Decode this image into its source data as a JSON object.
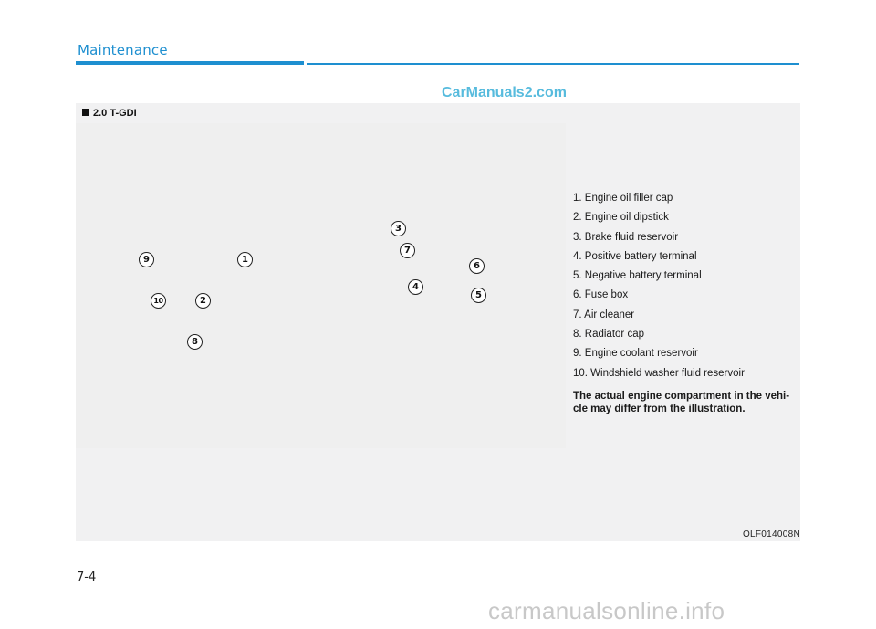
{
  "header": {
    "section_title": "Maintenance",
    "accent_color": "#1e8fd0"
  },
  "watermark_top": "CarManuals2.com",
  "figure": {
    "label": "2.0 T-GDI",
    "code": "OLF014008N",
    "callouts": [
      {
        "number": "1"
      },
      {
        "number": "2"
      },
      {
        "number": "3"
      },
      {
        "number": "4"
      },
      {
        "number": "5"
      },
      {
        "number": "6"
      },
      {
        "number": "7"
      },
      {
        "number": "8"
      },
      {
        "number": "9"
      },
      {
        "number": "10"
      }
    ]
  },
  "legend": {
    "items": [
      "1. Engine oil filler cap",
      "2. Engine oil dipstick",
      "3. Brake fluid reservoir",
      "4. Positive battery terminal",
      "5. Negative battery terminal",
      "6. Fuse box",
      "7. Air cleaner",
      "8. Radiator cap",
      "9. Engine coolant reservoir",
      "10. Windshield washer fluid reservoir"
    ],
    "note": "The actual engine compartment in the vehi-cle may differ from the illustration."
  },
  "footer": {
    "page_number": "7-4",
    "watermark": "carmanualsonline.info"
  }
}
